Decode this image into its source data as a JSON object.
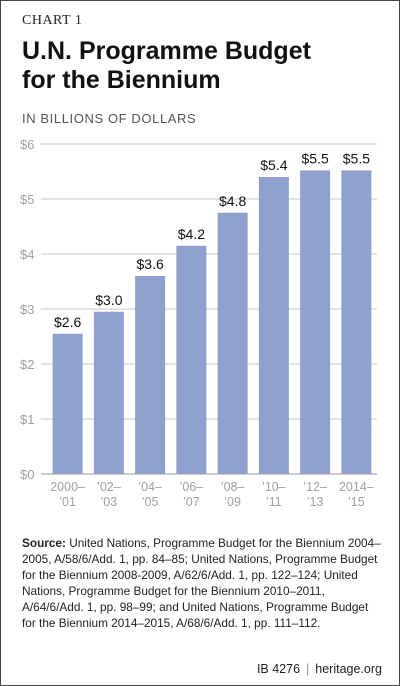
{
  "header": {
    "kicker": "CHART 1",
    "title_line1": "U.N. Programme Budget",
    "title_line2": "for the Biennium",
    "subtitle": "IN BILLIONS OF DOLLARS"
  },
  "colors": {
    "bar": "#8fa0cf",
    "grid": "#c9c9c9",
    "axis_text": "#a0a0a0"
  },
  "chart_data": {
    "type": "bar",
    "categories": [
      [
        "2000–",
        "’01"
      ],
      [
        "’02–",
        "’03"
      ],
      [
        "’04–",
        "’05"
      ],
      [
        "’06–",
        "’07"
      ],
      [
        "’08–",
        "’09"
      ],
      [
        "’10–",
        "’11"
      ],
      [
        "’12–",
        "’13"
      ],
      [
        "2014–",
        "’15"
      ]
    ],
    "values": [
      2.55,
      2.95,
      3.6,
      4.15,
      4.75,
      5.4,
      5.52,
      5.52
    ],
    "data_labels": [
      "$2.6",
      "$3.0",
      "$3.6",
      "$4.2",
      "$4.8",
      "$5.4",
      "$5.5",
      "$5.5"
    ],
    "yticks": [
      0,
      1,
      2,
      3,
      4,
      5,
      6
    ],
    "ytick_labels": [
      "$0",
      "$1",
      "$2",
      "$3",
      "$4",
      "$5",
      "$6"
    ],
    "ylim": [
      0,
      6
    ],
    "grid": true
  },
  "source": {
    "label": "Source:",
    "text": " United Nations, Programme Budget for the Biennium 2004–2005, A/58/6/Add. 1, pp. 84–85; United Nations, Programme Budget for the Biennium 2008-2009, A/62/6/Add. 1, pp. 122–124; United Nations, Programme Budget for the Biennium 2010–2011, A/64/6/Add. 1, pp. 98–99; and United Nations, Programme Budget for the Biennium 2014–2015, A/68/6/Add. 1, pp. 111–112."
  },
  "footer": {
    "id": "IB 4276",
    "site": "heritage.org"
  }
}
